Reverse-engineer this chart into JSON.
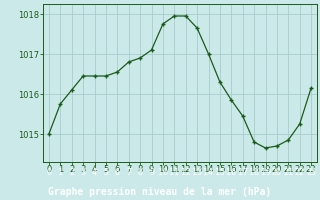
{
  "x": [
    0,
    1,
    2,
    3,
    4,
    5,
    6,
    7,
    8,
    9,
    10,
    11,
    12,
    13,
    14,
    15,
    16,
    17,
    18,
    19,
    20,
    21,
    22,
    23
  ],
  "y": [
    1015.0,
    1015.75,
    1016.1,
    1016.45,
    1016.45,
    1016.45,
    1016.55,
    1016.8,
    1016.9,
    1017.1,
    1017.75,
    1017.95,
    1017.95,
    1017.65,
    1017.0,
    1016.3,
    1015.85,
    1015.45,
    1014.8,
    1014.65,
    1014.7,
    1014.85,
    1015.25,
    1016.15
  ],
  "title": "Graphe pression niveau de la mer (hPa)",
  "bg_color": "#cce9e9",
  "grid_color": "#a8cccc",
  "line_color": "#1a5c1a",
  "marker_color": "#1a5c1a",
  "text_color": "#1a5c1a",
  "label_bg_color": "#2d6b2d",
  "label_text_color": "#ffffff",
  "ylim": [
    1014.3,
    1018.25
  ],
  "yticks": [
    1015,
    1016,
    1017,
    1018
  ],
  "tick_fontsize": 6.0,
  "xlabel_fontsize": 7.0
}
